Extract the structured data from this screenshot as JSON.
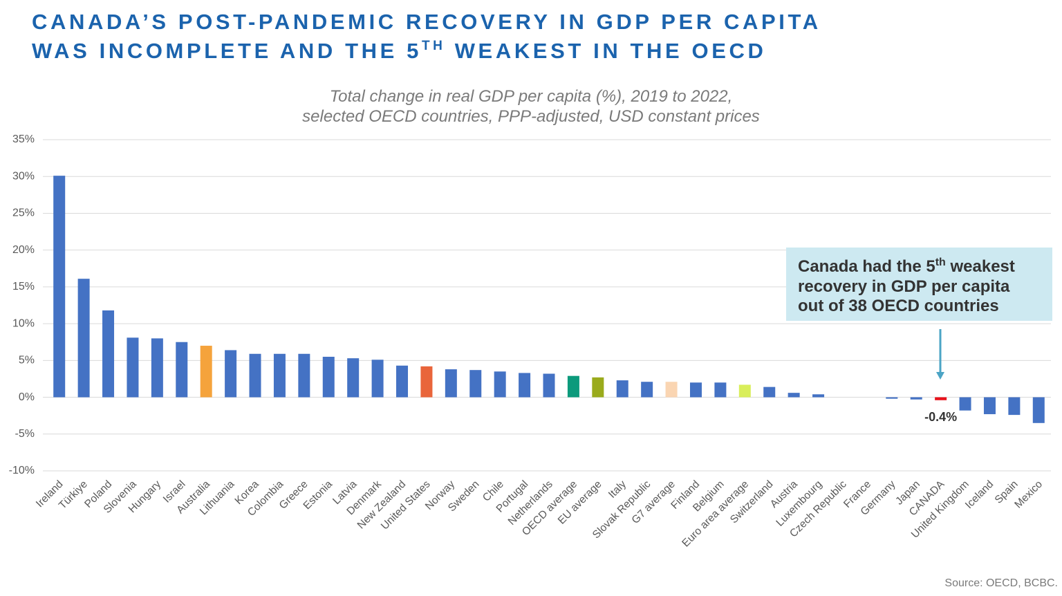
{
  "chart_data": {
    "type": "bar",
    "title": {
      "line1": "CANADA’S POST-PANDEMIC RECOVERY IN GDP PER CAPITA",
      "line2": "WAS INCOMPLETE AND THE 5",
      "line2_sup": "TH",
      "line2_end": " WEAKEST IN THE OECD"
    },
    "subtitle": [
      "Total change in real GDP per capita (%), 2019 to 2022,",
      "selected OECD countries, PPP-adjusted, USD constant prices"
    ],
    "categories": [
      "Ireland",
      "Türkiye",
      "Poland",
      "Slovenia",
      "Hungary",
      "Israel",
      "Australia",
      "Lithuania",
      "Korea",
      "Colombia",
      "Greece",
      "Estonia",
      "Latvia",
      "Denmark",
      "New Zealand",
      "United States",
      "Norway",
      "Sweden",
      "Chile",
      "Portugal",
      "Netherlands",
      "OECD average",
      "EU average",
      "Italy",
      "Slovak Republic",
      "G7 average",
      "Finland",
      "Belgium",
      "Euro area average",
      "Switzerland",
      "Austria",
      "Luxembourg",
      "Czech Republic",
      "France",
      "Germany",
      "Japan",
      "CANADA",
      "United Kingdom",
      "Iceland",
      "Spain",
      "Mexico"
    ],
    "values": [
      30.1,
      16.1,
      11.8,
      8.1,
      8.0,
      7.5,
      7.0,
      6.4,
      5.9,
      5.9,
      5.9,
      5.5,
      5.3,
      5.1,
      4.3,
      4.2,
      3.8,
      3.7,
      3.5,
      3.3,
      3.2,
      2.9,
      2.7,
      2.3,
      2.1,
      2.1,
      2.0,
      2.0,
      1.7,
      1.4,
      0.6,
      0.4,
      0,
      0,
      -0.2,
      -0.3,
      -0.4,
      -1.8,
      -2.3,
      -2.4,
      -3.5
    ],
    "value_labels": [
      null,
      null,
      null,
      null,
      null,
      null,
      null,
      null,
      null,
      null,
      null,
      null,
      null,
      null,
      null,
      null,
      null,
      null,
      null,
      null,
      null,
      null,
      null,
      null,
      null,
      null,
      null,
      null,
      null,
      null,
      null,
      null,
      null,
      null,
      null,
      null,
      "-0.4%",
      null,
      null,
      null,
      null
    ],
    "colors": [
      "#4472c4",
      "#4472c4",
      "#4472c4",
      "#4472c4",
      "#4472c4",
      "#4472c4",
      "#f5a33c",
      "#4472c4",
      "#4472c4",
      "#4472c4",
      "#4472c4",
      "#4472c4",
      "#4472c4",
      "#4472c4",
      "#4472c4",
      "#e9653b",
      "#4472c4",
      "#4472c4",
      "#4472c4",
      "#4472c4",
      "#4472c4",
      "#0c9a7c",
      "#9aab1c",
      "#4472c4",
      "#4472c4",
      "#fad5b2",
      "#4472c4",
      "#4472c4",
      "#d9ee5a",
      "#4472c4",
      "#4472c4",
      "#4472c4",
      "#4472c4",
      "#4472c4",
      "#4472c4",
      "#4472c4",
      "#e8121b",
      "#4472c4",
      "#4472c4",
      "#4472c4",
      "#4472c4"
    ],
    "ylim": [
      -10,
      35
    ],
    "yticks": [
      {
        "value": -10,
        "label": "-10%"
      },
      {
        "value": -5,
        "label": "-5%"
      },
      {
        "value": 0,
        "label": "0%"
      },
      {
        "value": 5,
        "label": "5%"
      },
      {
        "value": 10,
        "label": "10%"
      },
      {
        "value": 15,
        "label": "15%"
      },
      {
        "value": 20,
        "label": "20%"
      },
      {
        "value": 25,
        "label": "25%"
      },
      {
        "value": 30,
        "label": "30%"
      },
      {
        "value": 35,
        "label": "35%"
      }
    ],
    "grid": true,
    "annotation": {
      "line1": "Canada had the 5",
      "line1_sup": "th",
      "line1_end": " weakest",
      "line2": "recovery in GDP per capita",
      "line3": "out of 38 OECD countries"
    },
    "source": "Source: OECD, BCBC."
  }
}
